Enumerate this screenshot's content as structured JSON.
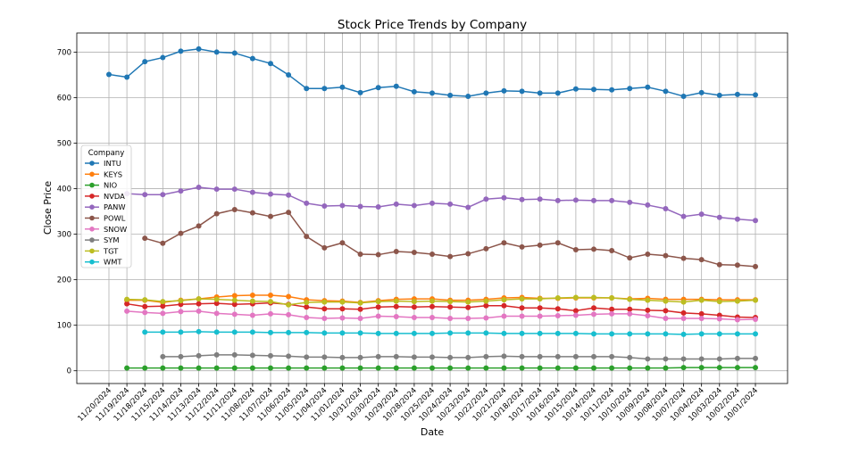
{
  "chart_data": {
    "type": "line",
    "title": "Stock Price Trends by Company",
    "xlabel": "Date",
    "ylabel": "Close Price",
    "ylim": [
      -28,
      742
    ],
    "yticks": [
      0,
      100,
      200,
      300,
      400,
      500,
      600,
      700
    ],
    "grid": true,
    "legend": {
      "title": "Company",
      "placement": "center-left"
    },
    "categories": [
      "11/20/2024",
      "11/19/2024",
      "11/18/2024",
      "11/15/2024",
      "11/14/2024",
      "11/13/2024",
      "11/12/2024",
      "11/11/2024",
      "11/08/2024",
      "11/07/2024",
      "11/06/2024",
      "11/05/2024",
      "11/04/2024",
      "11/01/2024",
      "10/31/2024",
      "10/30/2024",
      "10/29/2024",
      "10/28/2024",
      "10/25/2024",
      "10/24/2024",
      "10/23/2024",
      "10/22/2024",
      "10/21/2024",
      "10/18/2024",
      "10/17/2024",
      "10/16/2024",
      "10/15/2024",
      "10/14/2024",
      "10/11/2024",
      "10/10/2024",
      "10/09/2024",
      "10/08/2024",
      "10/07/2024",
      "10/04/2024",
      "10/03/2024",
      "10/02/2024",
      "10/01/2024"
    ],
    "series": [
      {
        "name": "INTU",
        "color": "#1f77b4",
        "values": [
          651,
          645,
          679,
          688,
          702,
          707,
          700,
          698,
          686,
          675,
          650,
          620,
          620,
          623,
          611,
          622,
          625,
          613,
          610,
          605,
          603,
          610,
          615,
          614,
          610,
          610,
          619,
          618,
          617,
          620,
          623,
          614,
          603,
          611,
          605,
          607,
          606
        ]
      },
      {
        "name": "KEYS",
        "color": "#ff7f0e",
        "values": [
          null,
          155,
          155,
          150,
          155,
          158,
          162,
          165,
          166,
          166,
          163,
          156,
          154,
          153,
          150,
          154,
          157,
          158,
          158,
          155,
          155,
          157,
          160,
          161,
          159,
          159,
          160,
          160,
          160,
          158,
          159,
          157,
          157,
          157,
          156,
          156,
          156
        ]
      },
      {
        "name": "NIO",
        "color": "#2ca02c",
        "values": [
          null,
          6,
          6,
          6,
          6,
          6,
          6,
          6,
          6,
          6,
          6,
          6,
          6,
          6,
          6,
          6,
          6,
          6,
          6,
          6,
          6,
          6,
          6,
          6,
          6,
          6,
          6,
          6,
          6,
          6,
          6,
          6,
          7,
          7,
          7,
          7,
          7
        ]
      },
      {
        "name": "NVDA",
        "color": "#d62728",
        "values": [
          null,
          147,
          141,
          142,
          146,
          147,
          148,
          146,
          147,
          149,
          146,
          140,
          136,
          136,
          135,
          140,
          141,
          140,
          141,
          140,
          139,
          143,
          143,
          138,
          138,
          136,
          132,
          138,
          135,
          135,
          133,
          132,
          127,
          125,
          122,
          118,
          117
        ]
      },
      {
        "name": "PANW",
        "color": "#9467bd",
        "values": [
          null,
          389,
          387,
          387,
          395,
          403,
          399,
          399,
          392,
          388,
          386,
          368,
          362,
          363,
          361,
          360,
          366,
          363,
          368,
          366,
          359,
          377,
          380,
          376,
          377,
          374,
          375,
          374,
          374,
          370,
          364,
          356,
          339,
          344,
          337,
          333,
          330
        ]
      },
      {
        "name": "POWL",
        "color": "#8c564b",
        "values": [
          null,
          null,
          291,
          280,
          302,
          318,
          345,
          354,
          347,
          339,
          348,
          295,
          270,
          281,
          256,
          255,
          262,
          260,
          256,
          251,
          257,
          268,
          281,
          272,
          276,
          281,
          266,
          267,
          264,
          248,
          256,
          253,
          247,
          244,
          233,
          232,
          229
        ]
      },
      {
        "name": "SNOW",
        "color": "#e377c2",
        "values": [
          null,
          131,
          128,
          126,
          130,
          131,
          126,
          124,
          122,
          125,
          123,
          117,
          115,
          116,
          115,
          120,
          119,
          117,
          117,
          115,
          115,
          116,
          120,
          120,
          120,
          121,
          122,
          124,
          125,
          125,
          121,
          115,
          115,
          115,
          114,
          112,
          113
        ]
      },
      {
        "name": "SYM",
        "color": "#7f7f7f",
        "values": [
          null,
          null,
          null,
          31,
          31,
          33,
          35,
          35,
          34,
          33,
          32,
          30,
          30,
          29,
          29,
          31,
          31,
          30,
          30,
          29,
          29,
          31,
          32,
          31,
          31,
          31,
          31,
          31,
          31,
          29,
          26,
          26,
          26,
          26,
          26,
          27,
          27
        ]
      },
      {
        "name": "TGT",
        "color": "#bcbd22",
        "values": [
          null,
          157,
          156,
          152,
          154,
          158,
          157,
          155,
          153,
          152,
          145,
          150,
          151,
          151,
          149,
          152,
          153,
          152,
          153,
          152,
          151,
          153,
          156,
          158,
          158,
          160,
          161,
          161,
          160,
          157,
          155,
          153,
          151,
          155,
          152,
          153,
          155
        ]
      },
      {
        "name": "WMT",
        "color": "#17becf",
        "values": [
          null,
          null,
          85,
          85,
          85,
          86,
          85,
          85,
          85,
          84,
          84,
          84,
          83,
          83,
          83,
          82,
          82,
          82,
          82,
          83,
          83,
          83,
          82,
          82,
          82,
          82,
          82,
          81,
          81,
          81,
          81,
          81,
          80,
          81,
          81,
          81,
          81
        ]
      }
    ]
  }
}
